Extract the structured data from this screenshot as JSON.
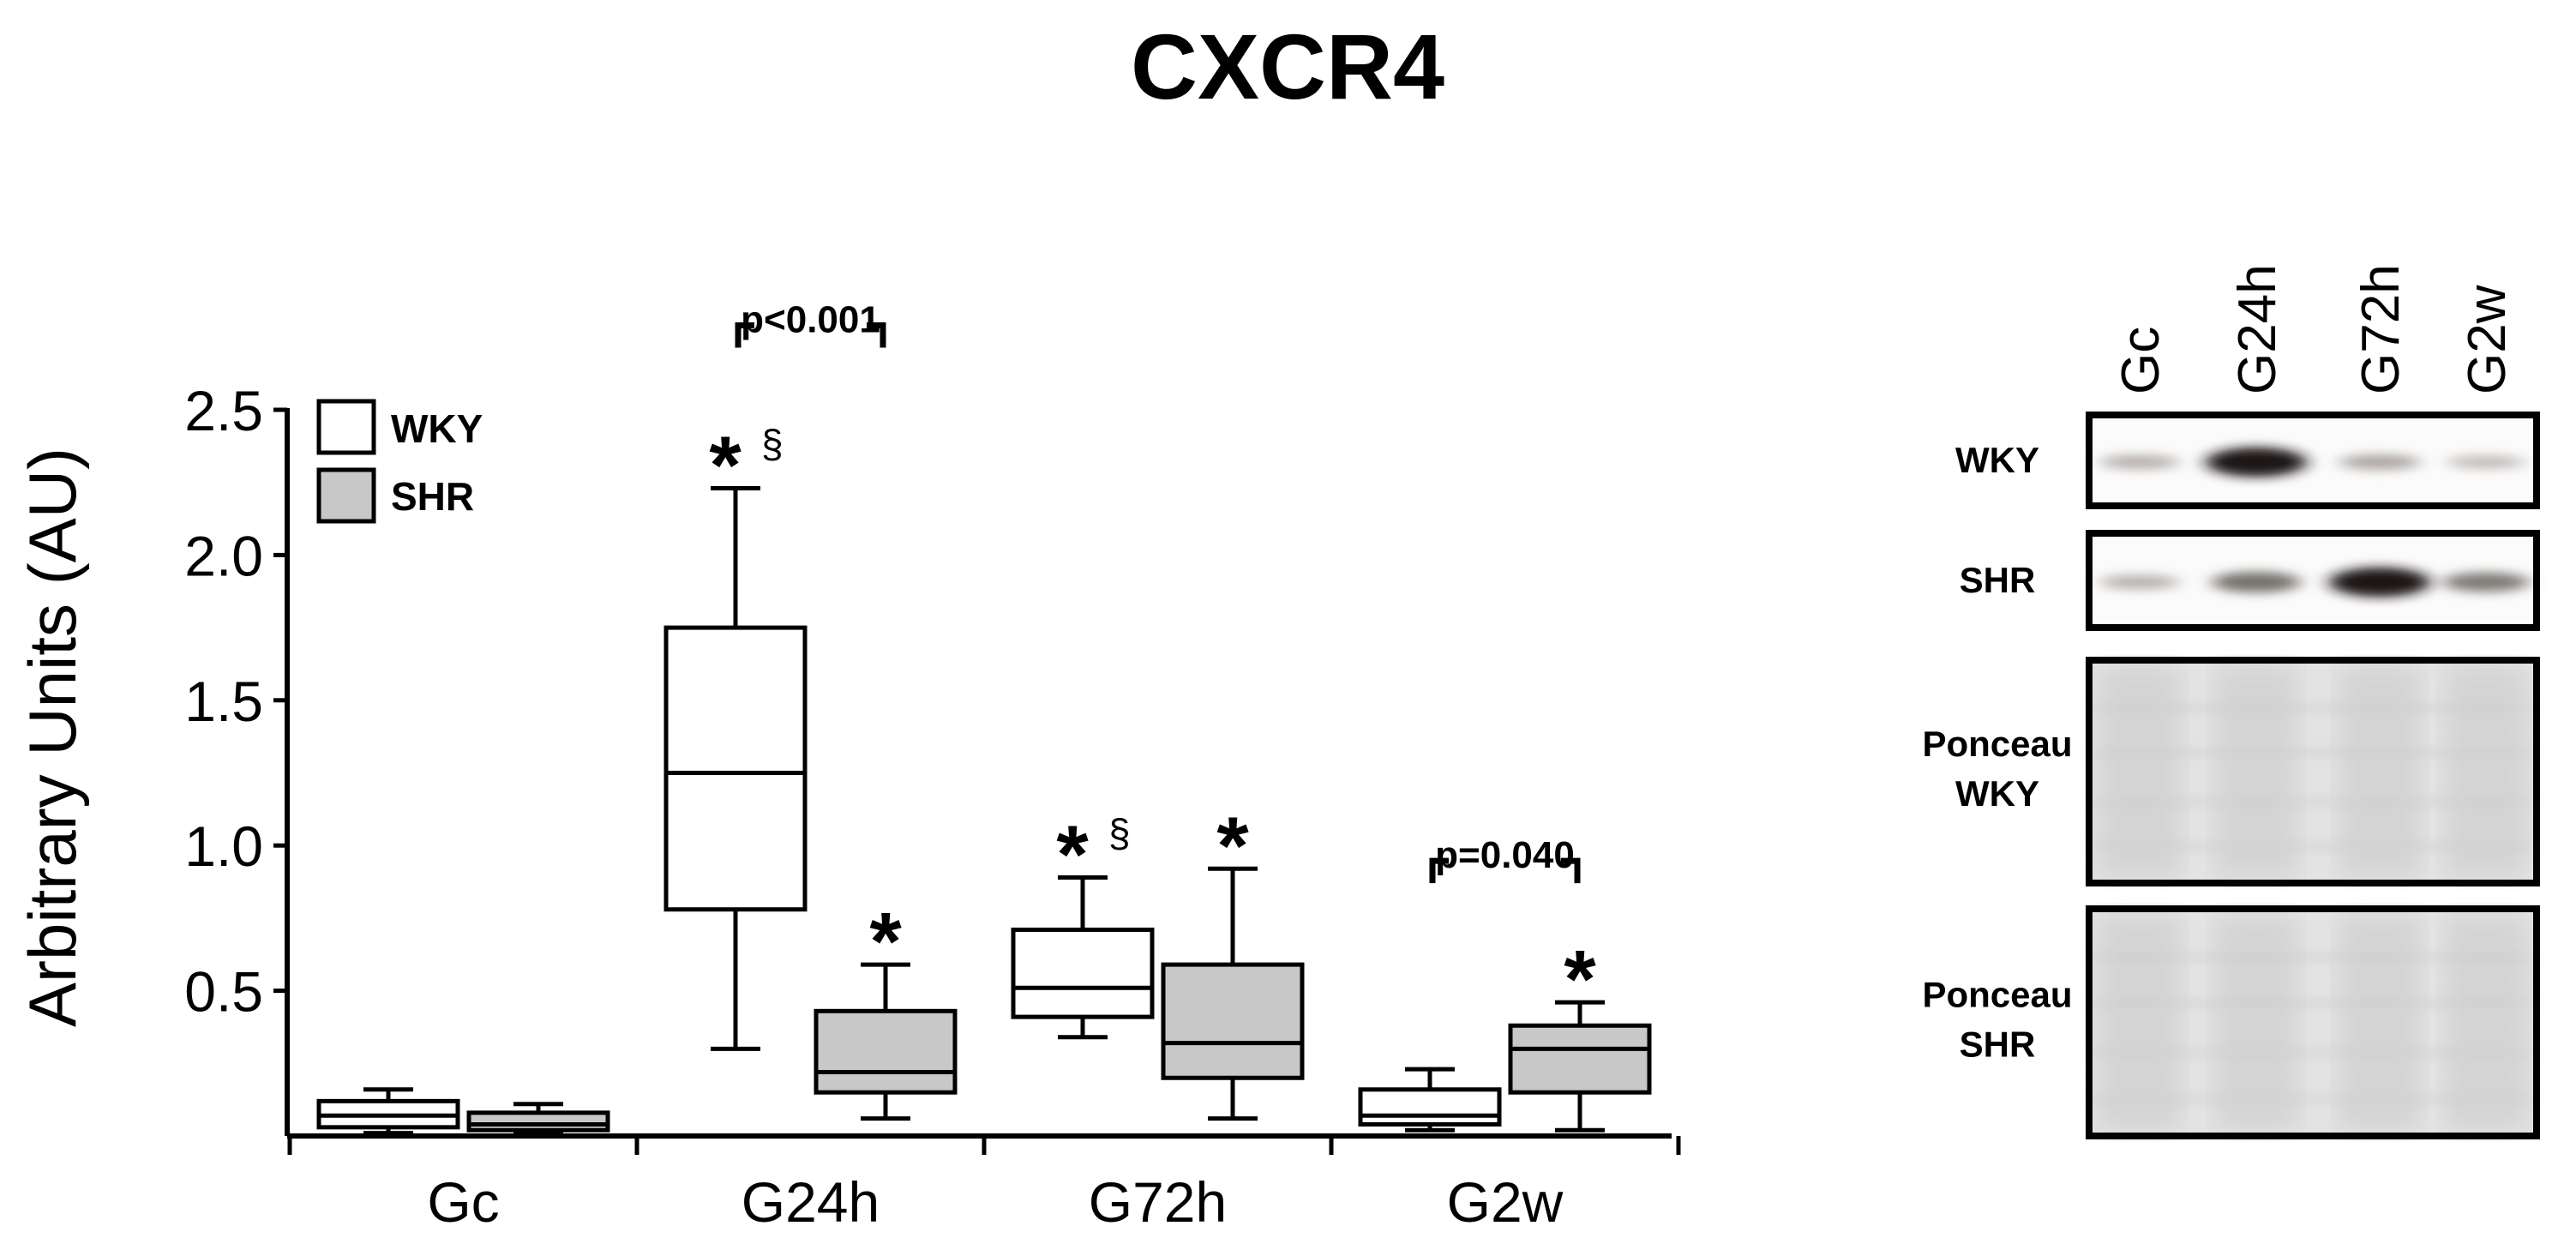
{
  "title": "CXCR4",
  "chart_data": {
    "type": "box",
    "title": "CXCR4",
    "ylabel": "Arbitrary Units (AU)",
    "xlabel": "",
    "ylim": [
      0,
      2.5
    ],
    "yticks": [
      0.5,
      1.0,
      1.5,
      2.0,
      2.5
    ],
    "ytick_labels": [
      "0.5",
      "1.0",
      "1.5",
      "2.0",
      "2.5"
    ],
    "grid": false,
    "legend_position": "top-left",
    "categories": [
      "Gc",
      "G24h",
      "G72h",
      "G2w"
    ],
    "series": [
      {
        "name": "WKY",
        "fill": "#ffffff",
        "boxes": [
          {
            "min": 0.01,
            "q1": 0.03,
            "median": 0.07,
            "q3": 0.12,
            "max": 0.16
          },
          {
            "min": 0.3,
            "q1": 0.78,
            "median": 1.25,
            "q3": 1.75,
            "max": 2.23
          },
          {
            "min": 0.34,
            "q1": 0.41,
            "median": 0.51,
            "q3": 0.71,
            "max": 0.89
          },
          {
            "min": 0.02,
            "q1": 0.04,
            "median": 0.07,
            "q3": 0.16,
            "max": 0.23
          }
        ]
      },
      {
        "name": "SHR",
        "fill": "#c8c8c8",
        "boxes": [
          {
            "min": 0.01,
            "q1": 0.02,
            "median": 0.04,
            "q3": 0.08,
            "max": 0.11
          },
          {
            "min": 0.06,
            "q1": 0.15,
            "median": 0.22,
            "q3": 0.43,
            "max": 0.59
          },
          {
            "min": 0.06,
            "q1": 0.2,
            "median": 0.32,
            "q3": 0.59,
            "max": 0.92
          },
          {
            "min": 0.02,
            "q1": 0.15,
            "median": 0.3,
            "q3": 0.38,
            "max": 0.46
          }
        ]
      }
    ],
    "annotations": [
      {
        "category": "G24h",
        "series": "WKY",
        "text": "*",
        "extra": "§"
      },
      {
        "category": "G24h",
        "series": "SHR",
        "text": "*",
        "extra": ""
      },
      {
        "category": "G72h",
        "series": "WKY",
        "text": "*",
        "extra": "§"
      },
      {
        "category": "G72h",
        "series": "SHR",
        "text": "*",
        "extra": ""
      },
      {
        "category": "G2w",
        "series": "SHR",
        "text": "*",
        "extra": ""
      }
    ],
    "brackets": [
      {
        "category": "G24h",
        "text": "p<0.001"
      },
      {
        "category": "G2w",
        "text": "p=0.040"
      }
    ]
  },
  "blot": {
    "lanes": [
      "Gc",
      "G24h",
      "G72h",
      "G2w"
    ],
    "panels": [
      {
        "label": "WKY",
        "kind": "band",
        "intensities": [
          0.25,
          0.95,
          0.3,
          0.2
        ]
      },
      {
        "label": "SHR",
        "kind": "band",
        "intensities": [
          0.25,
          0.55,
          0.95,
          0.5
        ]
      },
      {
        "label_lines": [
          "Ponceau",
          "WKY"
        ],
        "kind": "ponceau"
      },
      {
        "label_lines": [
          "Ponceau",
          "SHR"
        ],
        "kind": "ponceau"
      }
    ]
  }
}
